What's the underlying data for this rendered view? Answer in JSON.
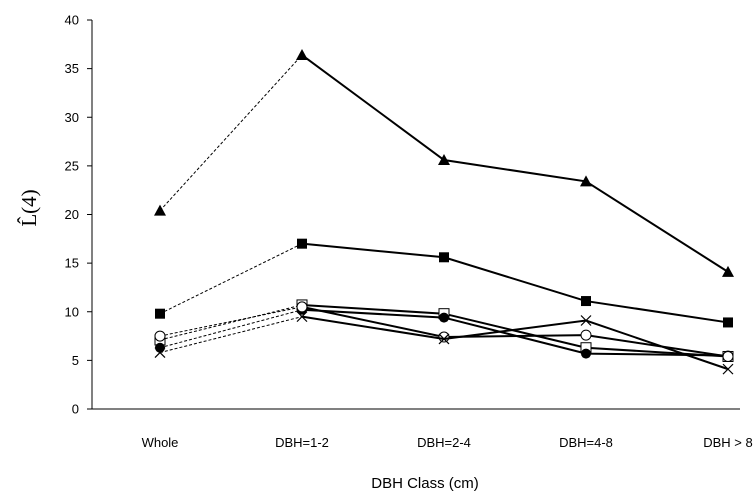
{
  "chart_data": {
    "type": "line",
    "title": "",
    "xlabel": "DBH Class (cm)",
    "ylabel": "L̂(4)",
    "ylim": [
      0,
      40
    ],
    "yticks": [
      0,
      5,
      10,
      15,
      20,
      25,
      30,
      35,
      40
    ],
    "categories": [
      "Whole",
      "DBH=1-2",
      "DBH=2-4",
      "DBH=4-8",
      "DBH > 8"
    ],
    "grid": false,
    "legend": "none",
    "series": [
      {
        "marker": "filled-triangle",
        "values": [
          20.4,
          36.4,
          25.6,
          23.4,
          14.1
        ]
      },
      {
        "marker": "filled-square",
        "values": [
          9.8,
          17.0,
          15.6,
          11.1,
          8.9
        ]
      },
      {
        "marker": "open-square",
        "values": [
          7.1,
          10.7,
          9.8,
          6.3,
          5.4
        ]
      },
      {
        "marker": "filled-circle",
        "values": [
          6.3,
          10.2,
          9.4,
          5.7,
          5.5
        ]
      },
      {
        "marker": "open-circle",
        "values": [
          7.5,
          10.5,
          7.4,
          7.6,
          5.4
        ]
      },
      {
        "marker": "x",
        "values": [
          5.8,
          9.5,
          7.2,
          9.1,
          4.1
        ]
      }
    ],
    "colors": {
      "line": "#000000",
      "axis": "#000000"
    }
  }
}
